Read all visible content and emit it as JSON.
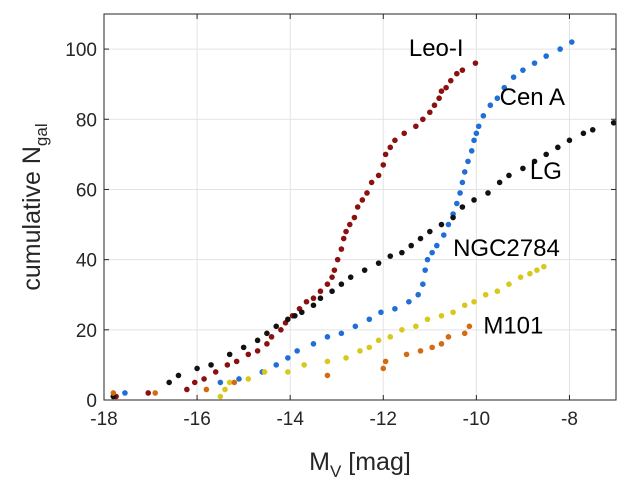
{
  "chart_data": {
    "type": "scatter",
    "title": "",
    "xlabel": "M",
    "xlabel_sub": "V",
    "xlabel_unit": " [mag]",
    "ylabel": "cumulative N",
    "ylabel_sub": "gal",
    "xlim": [
      -18,
      -7
    ],
    "ylim": [
      0,
      110
    ],
    "x_ticks": [
      -18,
      -16,
      -14,
      -12,
      -10,
      -8
    ],
    "y_ticks": [
      0,
      20,
      40,
      60,
      80,
      100
    ],
    "x_tick_labels": [
      "-18",
      "-16",
      "-14",
      "-12",
      "-10",
      "-8"
    ],
    "y_tick_labels": [
      "0",
      "20",
      "40",
      "60",
      "80",
      "100"
    ],
    "grid": true,
    "series": [
      {
        "name": "Leo-I",
        "color": "#8b1010",
        "points": [
          [
            -17.74,
            1
          ],
          [
            -17.05,
            2
          ],
          [
            -16.22,
            3
          ],
          [
            -16.05,
            5
          ],
          [
            -15.85,
            6
          ],
          [
            -15.6,
            8
          ],
          [
            -15.35,
            10
          ],
          [
            -15.15,
            11
          ],
          [
            -14.9,
            13
          ],
          [
            -14.7,
            14
          ],
          [
            -14.5,
            16
          ],
          [
            -14.4,
            18
          ],
          [
            -14.2,
            20
          ],
          [
            -14.1,
            22
          ],
          [
            -13.95,
            24
          ],
          [
            -13.8,
            26
          ],
          [
            -13.65,
            28
          ],
          [
            -13.5,
            29
          ],
          [
            -13.35,
            31
          ],
          [
            -13.2,
            33
          ],
          [
            -13.1,
            35
          ],
          [
            -13.05,
            37
          ],
          [
            -12.98,
            40
          ],
          [
            -12.9,
            43
          ],
          [
            -12.85,
            46
          ],
          [
            -12.8,
            48
          ],
          [
            -12.72,
            50
          ],
          [
            -12.62,
            52
          ],
          [
            -12.55,
            55
          ],
          [
            -12.45,
            57
          ],
          [
            -12.35,
            59
          ],
          [
            -12.25,
            62
          ],
          [
            -12.1,
            64
          ],
          [
            -12.0,
            67
          ],
          [
            -11.95,
            70
          ],
          [
            -11.85,
            72
          ],
          [
            -11.75,
            74
          ],
          [
            -11.55,
            76
          ],
          [
            -11.3,
            78
          ],
          [
            -11.15,
            80
          ],
          [
            -11.0,
            82
          ],
          [
            -10.9,
            84
          ],
          [
            -10.8,
            86
          ],
          [
            -10.75,
            88
          ],
          [
            -10.65,
            89
          ],
          [
            -10.55,
            91
          ],
          [
            -10.42,
            93
          ],
          [
            -10.3,
            94
          ],
          [
            -10.02,
            96
          ]
        ]
      },
      {
        "name": "Cen A",
        "color": "#1f6fd6",
        "points": [
          [
            -17.55,
            2
          ],
          [
            -15.5,
            5
          ],
          [
            -15.1,
            6
          ],
          [
            -14.6,
            8
          ],
          [
            -14.3,
            10
          ],
          [
            -14.05,
            12
          ],
          [
            -13.85,
            14
          ],
          [
            -13.5,
            16
          ],
          [
            -13.2,
            18
          ],
          [
            -12.9,
            19
          ],
          [
            -12.6,
            21
          ],
          [
            -12.3,
            23
          ],
          [
            -12.05,
            25
          ],
          [
            -11.75,
            26
          ],
          [
            -11.45,
            28
          ],
          [
            -11.25,
            30
          ],
          [
            -11.15,
            33
          ],
          [
            -11.1,
            37
          ],
          [
            -11.05,
            40
          ],
          [
            -10.95,
            42
          ],
          [
            -10.85,
            44
          ],
          [
            -10.7,
            47
          ],
          [
            -10.6,
            50
          ],
          [
            -10.5,
            53
          ],
          [
            -10.42,
            56
          ],
          [
            -10.35,
            59
          ],
          [
            -10.3,
            62
          ],
          [
            -10.25,
            65
          ],
          [
            -10.18,
            68
          ],
          [
            -10.1,
            71
          ],
          [
            -10.05,
            74
          ],
          [
            -10.0,
            76
          ],
          [
            -9.95,
            78
          ],
          [
            -9.85,
            81
          ],
          [
            -9.7,
            84
          ],
          [
            -9.55,
            86
          ],
          [
            -9.4,
            89
          ],
          [
            -9.2,
            92
          ],
          [
            -9.0,
            94
          ],
          [
            -8.75,
            96
          ],
          [
            -8.5,
            98
          ],
          [
            -8.2,
            100
          ],
          [
            -7.95,
            102
          ]
        ]
      },
      {
        "name": "LG",
        "color": "#111111",
        "points": [
          [
            -17.8,
            1
          ],
          [
            -16.6,
            5
          ],
          [
            -16.4,
            7
          ],
          [
            -16.0,
            9
          ],
          [
            -15.7,
            10
          ],
          [
            -15.3,
            13
          ],
          [
            -15.0,
            15
          ],
          [
            -14.7,
            17
          ],
          [
            -14.5,
            19
          ],
          [
            -14.3,
            21
          ],
          [
            -14.05,
            23
          ],
          [
            -13.9,
            24
          ],
          [
            -13.75,
            25
          ],
          [
            -13.5,
            27
          ],
          [
            -13.35,
            29
          ],
          [
            -13.1,
            31
          ],
          [
            -12.9,
            33
          ],
          [
            -12.7,
            35
          ],
          [
            -12.4,
            37
          ],
          [
            -12.1,
            39
          ],
          [
            -11.85,
            41
          ],
          [
            -11.6,
            42
          ],
          [
            -11.4,
            44
          ],
          [
            -11.2,
            46
          ],
          [
            -11.0,
            48
          ],
          [
            -10.75,
            50
          ],
          [
            -10.5,
            52
          ],
          [
            -10.3,
            55
          ],
          [
            -10.05,
            57
          ],
          [
            -9.75,
            59
          ],
          [
            -9.5,
            62
          ],
          [
            -9.3,
            64
          ],
          [
            -9.0,
            66
          ],
          [
            -8.75,
            68
          ],
          [
            -8.5,
            70
          ],
          [
            -8.25,
            72
          ],
          [
            -8.0,
            74
          ],
          [
            -7.7,
            76
          ],
          [
            -7.5,
            77
          ],
          [
            -7.05,
            79
          ]
        ]
      },
      {
        "name": "NGC2784",
        "color": "#d8c81c",
        "points": [
          [
            -15.5,
            1
          ],
          [
            -15.4,
            3
          ],
          [
            -15.3,
            5
          ],
          [
            -14.9,
            6
          ],
          [
            -14.55,
            8
          ],
          [
            -14.05,
            8
          ],
          [
            -13.7,
            10
          ],
          [
            -13.2,
            11
          ],
          [
            -12.8,
            12
          ],
          [
            -12.5,
            14
          ],
          [
            -12.3,
            15
          ],
          [
            -12.1,
            17
          ],
          [
            -11.85,
            18
          ],
          [
            -11.6,
            20
          ],
          [
            -11.3,
            21
          ],
          [
            -11.05,
            23
          ],
          [
            -10.75,
            24
          ],
          [
            -10.5,
            25
          ],
          [
            -10.25,
            27
          ],
          [
            -10.05,
            28
          ],
          [
            -9.8,
            30
          ],
          [
            -9.55,
            31
          ],
          [
            -9.3,
            33
          ],
          [
            -9.05,
            35
          ],
          [
            -8.85,
            36
          ],
          [
            -8.7,
            37
          ],
          [
            -8.55,
            38
          ]
        ]
      },
      {
        "name": "M101",
        "color": "#d46a12",
        "points": [
          [
            -17.8,
            2
          ],
          [
            -16.9,
            2
          ],
          [
            -15.8,
            3
          ],
          [
            -15.2,
            5
          ],
          [
            -13.2,
            7
          ],
          [
            -12.0,
            9
          ],
          [
            -11.95,
            11
          ],
          [
            -11.5,
            13
          ],
          [
            -11.2,
            14
          ],
          [
            -10.95,
            15
          ],
          [
            -10.75,
            16
          ],
          [
            -10.6,
            18
          ],
          [
            -10.25,
            19
          ],
          [
            -10.15,
            21
          ]
        ]
      }
    ],
    "annotations": [
      {
        "text": "Leo-I",
        "x": -11.45,
        "y": 98
      },
      {
        "text": "Cen A",
        "x": -9.5,
        "y": 84
      },
      {
        "text": "LG",
        "x": -8.85,
        "y": 63
      },
      {
        "text": "NGC2784",
        "x": -10.5,
        "y": 41
      },
      {
        "text": "M101",
        "x": -9.85,
        "y": 19
      }
    ]
  }
}
